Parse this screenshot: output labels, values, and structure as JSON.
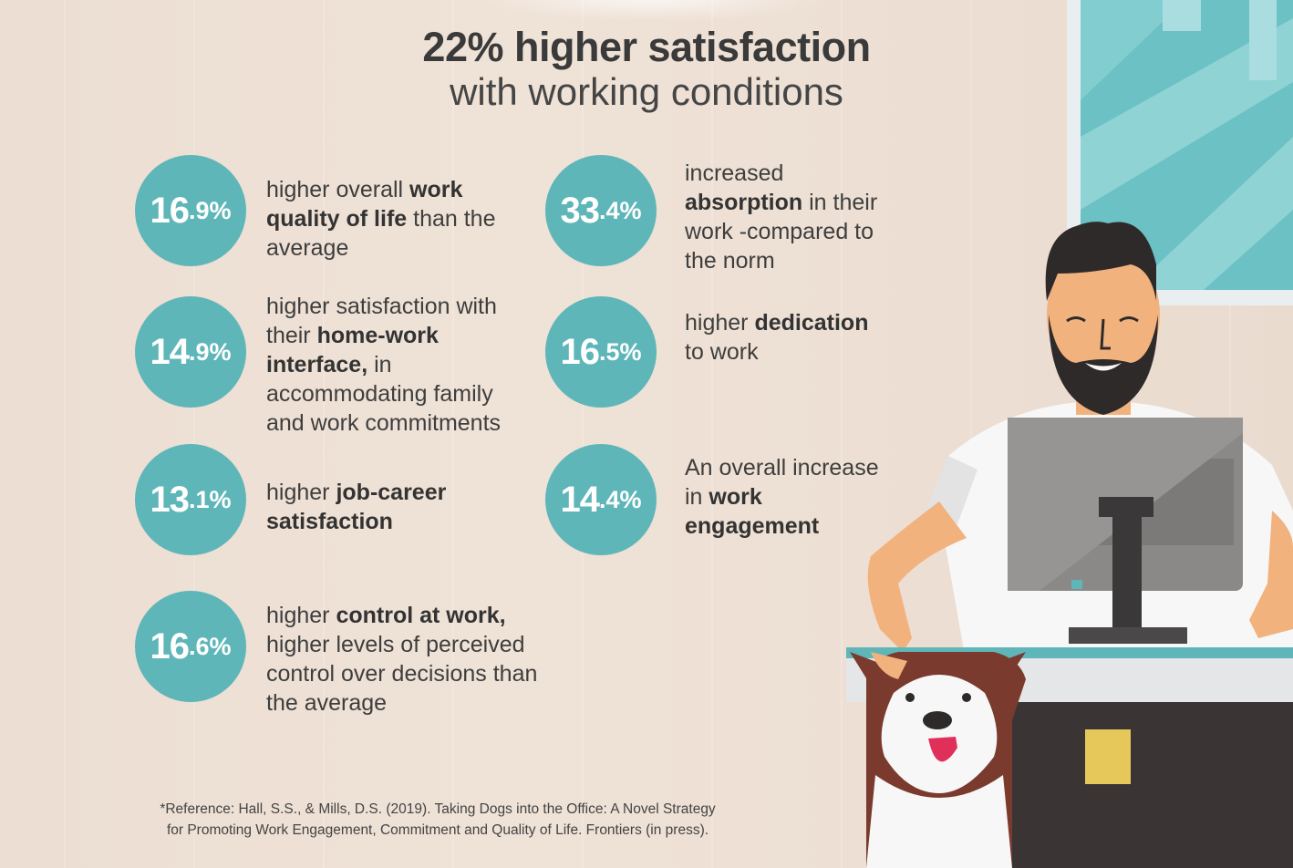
{
  "title": {
    "line1": "22% higher satisfaction",
    "line2": "with working conditions"
  },
  "stats": [
    {
      "id": "s1",
      "num": "16",
      "dec": ".9%",
      "pre": "higher overall ",
      "bold": "work quality of life",
      "post": " than the average"
    },
    {
      "id": "s2",
      "num": "14",
      "dec": ".9%",
      "pre": "higher satisfaction with their ",
      "bold": "home-work interface,",
      "post": " in accommodating family and work commitments"
    },
    {
      "id": "s3",
      "num": "13",
      "dec": ".1%",
      "pre": "higher ",
      "bold": "job-career satisfaction",
      "post": ""
    },
    {
      "id": "s4",
      "num": "16",
      "dec": ".6%",
      "pre": "higher ",
      "bold": "control at work,",
      "post": " higher levels of perceived control over decisions than the average"
    },
    {
      "id": "s5",
      "num": "33",
      "dec": ".4%",
      "pre": "increased ",
      "bold": "absorption",
      "post": " in their work -compared to the norm"
    },
    {
      "id": "s6",
      "num": "16",
      "dec": ".5%",
      "pre": "higher ",
      "bold": "dedication",
      "post": " to work"
    },
    {
      "id": "s7",
      "num": "14",
      "dec": ".4%",
      "pre": "An overall increase in ",
      "bold": "work engagement",
      "post": ""
    }
  ],
  "footnote": {
    "line1": "*Reference: Hall, S.S., & Mills, D.S. (2019). Taking Dogs into the Office: A Novel Strategy",
    "line2": "for Promoting Work Engagement, Commitment and Quality of Life. Frontiers (in press)."
  },
  "colors": {
    "accent": "#5fb6b9",
    "background": "#ecded2",
    "text": "#3b3a3a"
  },
  "illustration": [
    "window",
    "bearded-man",
    "computer-monitor",
    "desk",
    "dog"
  ]
}
